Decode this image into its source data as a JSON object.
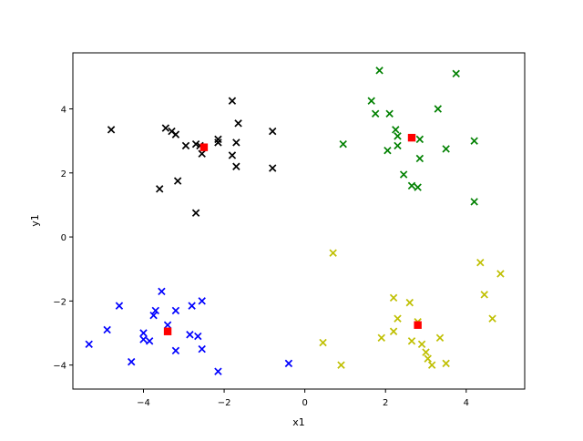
{
  "chart_data": {
    "type": "scatter",
    "xlabel": "x1",
    "ylabel": "y1",
    "xlim": [
      -5.75,
      5.45
    ],
    "ylim": [
      -4.75,
      5.75
    ],
    "xticks": [
      -4,
      -2,
      0,
      2,
      4
    ],
    "yticks": [
      -4,
      -2,
      0,
      2,
      4
    ],
    "grid": false,
    "series": [
      {
        "marker": "x",
        "color": "#000000",
        "points": [
          [
            -4.8,
            3.35
          ],
          [
            -3.45,
            3.4
          ],
          [
            -3.3,
            3.3
          ],
          [
            -3.2,
            3.2
          ],
          [
            -2.95,
            2.85
          ],
          [
            -2.7,
            2.9
          ],
          [
            -2.6,
            2.85
          ],
          [
            -2.55,
            2.6
          ],
          [
            -2.15,
            3.05
          ],
          [
            -2.15,
            2.95
          ],
          [
            -1.8,
            4.25
          ],
          [
            -1.65,
            3.55
          ],
          [
            -1.7,
            2.95
          ],
          [
            -1.8,
            2.55
          ],
          [
            -1.7,
            2.2
          ],
          [
            -0.8,
            3.3
          ],
          [
            -0.8,
            2.15
          ],
          [
            -3.6,
            1.5
          ],
          [
            -3.15,
            1.75
          ],
          [
            -2.7,
            0.75
          ]
        ]
      },
      {
        "marker": "x",
        "color": "#008000",
        "points": [
          [
            1.85,
            5.2
          ],
          [
            3.75,
            5.1
          ],
          [
            1.65,
            4.25
          ],
          [
            1.75,
            3.85
          ],
          [
            2.1,
            3.85
          ],
          [
            3.3,
            4.0
          ],
          [
            2.25,
            3.35
          ],
          [
            2.3,
            3.15
          ],
          [
            2.3,
            2.85
          ],
          [
            2.05,
            2.7
          ],
          [
            2.85,
            3.05
          ],
          [
            2.85,
            2.45
          ],
          [
            3.5,
            2.75
          ],
          [
            4.2,
            3.0
          ],
          [
            0.95,
            2.9
          ],
          [
            2.45,
            1.95
          ],
          [
            2.65,
            1.6
          ],
          [
            2.8,
            1.55
          ],
          [
            4.2,
            1.1
          ]
        ]
      },
      {
        "marker": "x",
        "color": "#0000ff",
        "points": [
          [
            -3.55,
            -1.7
          ],
          [
            -4.6,
            -2.15
          ],
          [
            -3.7,
            -2.3
          ],
          [
            -3.75,
            -2.45
          ],
          [
            -3.2,
            -2.3
          ],
          [
            -2.8,
            -2.15
          ],
          [
            -2.55,
            -2.0
          ],
          [
            -3.4,
            -2.75
          ],
          [
            -4.9,
            -2.9
          ],
          [
            -4.0,
            -3.0
          ],
          [
            -4.0,
            -3.2
          ],
          [
            -3.85,
            -3.25
          ],
          [
            -2.85,
            -3.05
          ],
          [
            -2.65,
            -3.1
          ],
          [
            -2.55,
            -3.5
          ],
          [
            -3.2,
            -3.55
          ],
          [
            -5.35,
            -3.35
          ],
          [
            -4.3,
            -3.9
          ],
          [
            -2.15,
            -4.2
          ],
          [
            -0.4,
            -3.95
          ]
        ]
      },
      {
        "marker": "x",
        "color": "#bfbf00",
        "points": [
          [
            0.7,
            -0.5
          ],
          [
            4.35,
            -0.8
          ],
          [
            4.85,
            -1.15
          ],
          [
            4.45,
            -1.8
          ],
          [
            4.65,
            -2.55
          ],
          [
            2.2,
            -1.9
          ],
          [
            2.6,
            -2.05
          ],
          [
            2.3,
            -2.55
          ],
          [
            2.8,
            -2.65
          ],
          [
            2.2,
            -2.95
          ],
          [
            1.9,
            -3.15
          ],
          [
            2.65,
            -3.25
          ],
          [
            2.9,
            -3.35
          ],
          [
            3.35,
            -3.15
          ],
          [
            0.45,
            -3.3
          ],
          [
            3.0,
            -3.6
          ],
          [
            3.05,
            -3.8
          ],
          [
            3.15,
            -4.0
          ],
          [
            3.5,
            -3.95
          ],
          [
            0.9,
            -4.0
          ]
        ]
      },
      {
        "marker": "s",
        "color": "#ff0000",
        "points": [
          [
            -2.5,
            2.8
          ],
          [
            2.65,
            3.1
          ],
          [
            -3.4,
            -2.95
          ],
          [
            2.8,
            -2.75
          ]
        ]
      }
    ]
  }
}
